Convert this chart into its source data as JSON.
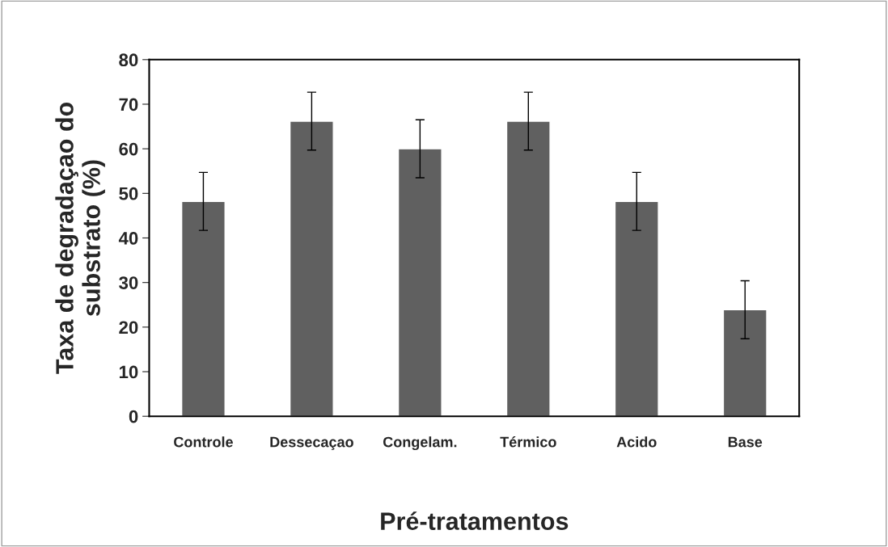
{
  "chart_data": {
    "type": "bar",
    "xlabel": "Pré-tratamentos",
    "ylabel": "Taxa de degradaçao do\nsubstrato (%)",
    "categories": [
      "Controle",
      "Dessecaçao",
      "Congelam.",
      "Térmico",
      "Acido",
      "Base"
    ],
    "values": [
      48.2,
      66.2,
      60.0,
      66.2,
      48.2,
      23.9
    ],
    "errors": [
      6.5,
      6.5,
      6.5,
      6.5,
      6.5,
      6.5
    ],
    "color": "#606060",
    "ylim": [
      0,
      80
    ],
    "yticks": [
      0,
      10,
      20,
      30,
      40,
      50,
      60,
      70,
      80
    ],
    "grid": false,
    "legend": false
  }
}
